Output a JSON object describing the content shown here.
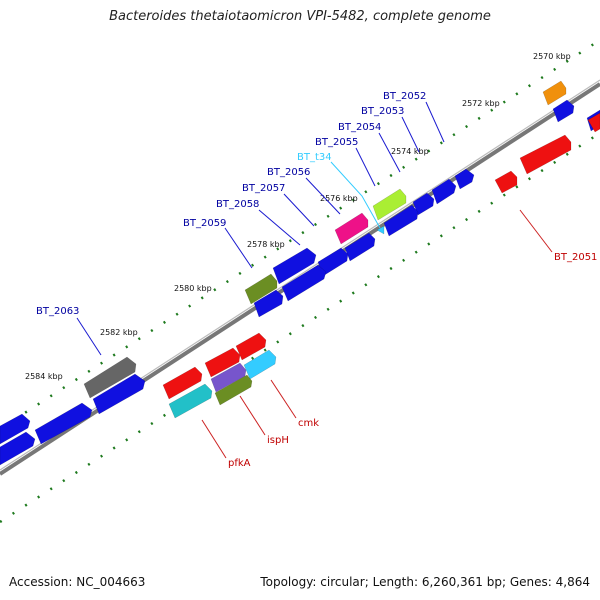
{
  "title": "Bacteroides thetaiotaomicron VPI-5482, complete genome",
  "footer": {
    "accession_label": "Accession:",
    "accession": "NC_004663",
    "topology_label": "Topology:",
    "topology": "circular",
    "length_label": "Length:",
    "length": "6,260,361 bp",
    "genes_label": "Genes:",
    "genes": "4,864"
  },
  "colors": {
    "label_top": "#0000a0",
    "label_bottom": "#c00000",
    "label_rna": "#33ccff",
    "tick": "#1e7a1e",
    "backbone": "#777777"
  },
  "ticks": [
    "2570 kbp",
    "2572 kbp",
    "2574 kbp",
    "2576 kbp",
    "2578 kbp",
    "2580 kbp",
    "2582 kbp",
    "2584 kbp"
  ],
  "gene_labels_top": [
    "BT_2052",
    "BT_2053",
    "BT_2054",
    "BT_2055",
    "BT_t34",
    "BT_2056",
    "BT_2057",
    "BT_2058",
    "BT_2059",
    "BT_2063"
  ],
  "gene_labels_bottom": [
    "BT_2051",
    "cmk",
    "ispH",
    "pfkA"
  ]
}
